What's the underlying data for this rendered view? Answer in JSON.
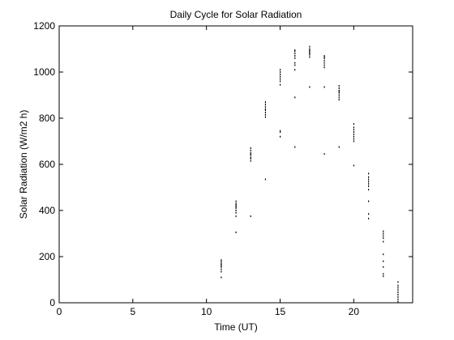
{
  "chart_data": {
    "type": "scatter",
    "title": "Daily Cycle for Solar Radiation",
    "xlabel": "Time (UT)",
    "ylabel": "Solar Radiation (W/m2 h)",
    "xlim": [
      0,
      24
    ],
    "ylim": [
      0,
      1200
    ],
    "xticks": [
      0,
      5,
      10,
      15,
      20
    ],
    "yticks": [
      0,
      200,
      400,
      600,
      800,
      1000,
      1200
    ],
    "grid": false,
    "legend": "none",
    "marker_color": "#000000",
    "series": [
      {
        "x": [
          11,
          11,
          11,
          11,
          11,
          11,
          11,
          11,
          11,
          12,
          12,
          12,
          12,
          12,
          12,
          12,
          12,
          12,
          12,
          13,
          13,
          13,
          13,
          13,
          13,
          13,
          13,
          13,
          14,
          14,
          14,
          14,
          14,
          14,
          14,
          14,
          14,
          15,
          15,
          15,
          15,
          15,
          15,
          15,
          15,
          15,
          15,
          16,
          16,
          16,
          16,
          16,
          16,
          16,
          16,
          16,
          16,
          17,
          17,
          17,
          17,
          17,
          17,
          17,
          17,
          17,
          18,
          18,
          18,
          18,
          18,
          18,
          18,
          18,
          18,
          19,
          19,
          19,
          19,
          19,
          19,
          19,
          19,
          19,
          20,
          20,
          20,
          20,
          20,
          20,
          20,
          20,
          20,
          21,
          21,
          21,
          21,
          21,
          21,
          21,
          21,
          21,
          21,
          22,
          22,
          22,
          22,
          22,
          22,
          22,
          22,
          22,
          22,
          23,
          23,
          23,
          23,
          23,
          23,
          23,
          23,
          23
        ],
        "y": [
          110,
          135,
          145,
          155,
          160,
          165,
          170,
          178,
          185,
          305,
          375,
          390,
          400,
          410,
          415,
          420,
          425,
          430,
          440,
          375,
          615,
          625,
          630,
          640,
          645,
          650,
          660,
          670,
          535,
          805,
          815,
          825,
          835,
          840,
          850,
          860,
          870,
          720,
          740,
          745,
          945,
          960,
          970,
          980,
          990,
          1000,
          1010,
          675,
          890,
          1010,
          1030,
          1040,
          1060,
          1070,
          1080,
          1090,
          1095,
          935,
          1065,
          1075,
          1080,
          1085,
          1090,
          1095,
          1100,
          1110,
          645,
          935,
          1020,
          1030,
          1040,
          1050,
          1060,
          1065,
          1070,
          675,
          880,
          890,
          900,
          910,
          915,
          920,
          930,
          940,
          595,
          700,
          710,
          720,
          730,
          740,
          750,
          760,
          775,
          365,
          385,
          440,
          490,
          505,
          515,
          525,
          535,
          545,
          560,
          115,
          125,
          155,
          180,
          210,
          265,
          280,
          290,
          300,
          310,
          5,
          15,
          25,
          35,
          45,
          55,
          65,
          75,
          90
        ]
      }
    ]
  }
}
